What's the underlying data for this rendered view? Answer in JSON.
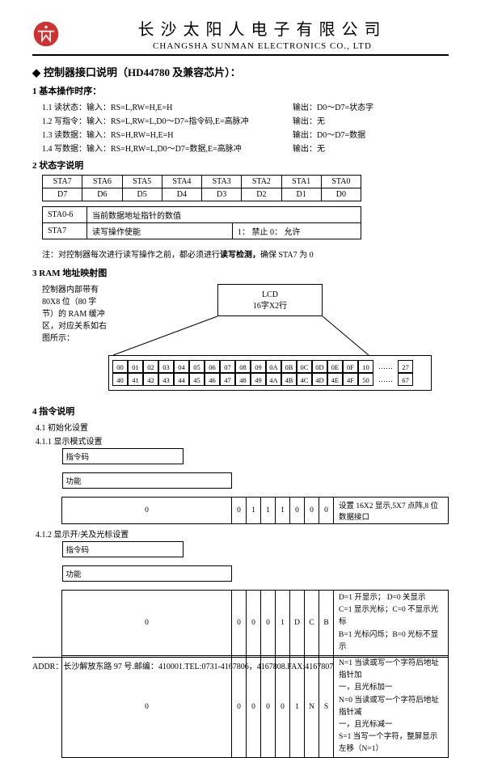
{
  "header": {
    "company_cn": "长沙太阳人电子有限公司",
    "company_en": "CHANGSHA SUNMAN ELECTRONICS CO., LTD"
  },
  "section1": {
    "title": "控制器接口说明（HD44780 及兼容芯片）：",
    "sub1": "1 基本操作时序：",
    "ops": [
      {
        "l": "1.1 读状态：输入：RS=L,RW=H,E=H",
        "r": "输出：D0～D7=状态字"
      },
      {
        "l": "1.2 写指令：输入：RS=L,RW=L,D0～D7=指令码,E=高脉冲",
        "r": "输出：无"
      },
      {
        "l": "1.3 读数据：输入：RS=H,RW=H,E=H",
        "r": "输出：D0～D7=数据"
      },
      {
        "l": "1.4 写数据：输入：RS=H,RW=L,D0～D7=数据,E=高脉冲",
        "r": "输出：无"
      }
    ]
  },
  "section2": {
    "title": "2 状态字说明",
    "row1": [
      "STA7",
      "STA6",
      "STA5",
      "STA4",
      "STA3",
      "STA2",
      "STA1",
      "STA0"
    ],
    "row2": [
      "D7",
      "D6",
      "D5",
      "D4",
      "D3",
      "D2",
      "D1",
      "D0"
    ],
    "t2r1c1": "STA0-6",
    "t2r1c2": "当前数据地址指针的数值",
    "t2r2c1": "STA7",
    "t2r2c2": "读写操作使能",
    "t2r2c3": "1：  禁止  0：  允许",
    "note": "注：对控制器每次进行读写操作之前，都必须进行",
    "note_bold": "读写检测，",
    "note_end": "确保 STA7 为 0"
  },
  "section3": {
    "title": "3 RAM 地址映射图",
    "desc": "控制器内部带有 80X8 位（80 字节）的 RAM 缓冲区，对应关系如右图所示：",
    "lcd_l1": "LCD",
    "lcd_l2": "16字X2行",
    "addr_row1": [
      "00",
      "01",
      "02",
      "03",
      "04",
      "05",
      "06",
      "07",
      "08",
      "09",
      "0A",
      "0B",
      "0C",
      "0D",
      "0E",
      "0F",
      "10"
    ],
    "addr_row1_end": "27",
    "addr_row2": [
      "40",
      "41",
      "42",
      "43",
      "44",
      "45",
      "46",
      "47",
      "48",
      "49",
      "4A",
      "4B",
      "4C",
      "4D",
      "4E",
      "4F",
      "50"
    ],
    "addr_row2_end": "67"
  },
  "section4": {
    "title": "4 指令说明",
    "s41": "4.1 初始化设置",
    "s411": "4.1.1  显示模式设置",
    "t411_header_cmd": "指令码",
    "t411_header_func": "功能",
    "t411_cmd": [
      "0",
      "0",
      "1",
      "1",
      "1",
      "0",
      "0",
      "0"
    ],
    "t411_func": "设置 16X2 显示,5X7 点阵,8 位数据接口",
    "s412": "4.1.2  显示开/关及光标设置",
    "t412_header_cmd": "指令码",
    "t412_header_func": "功能",
    "t412_r1_cmd": [
      "0",
      "0",
      "0",
      "0",
      "1",
      "D",
      "C",
      "B"
    ],
    "t412_r1_func": "D=1 开显示； D=0 关显示\nC=1 显示光标；C=0 不显示光标\nB=1 光标闪烁；B=0 光标不显示",
    "t412_r2_cmd": [
      "0",
      "0",
      "0",
      "0",
      "0",
      "1",
      "N",
      "S"
    ],
    "t412_r2_func": "N=1 当读或写一个字符后地址指针加\n一，且光标加一\nN=0 当读或写一个字符后地址指针减\n一，且光标减一\nS=1 当写一个字符，整屏显示左移（N=1）"
  },
  "footer": "ADDR：长沙解放东路 97 号.邮编：410001.TEL:0731-4167806，4167808.FAX:4167807"
}
